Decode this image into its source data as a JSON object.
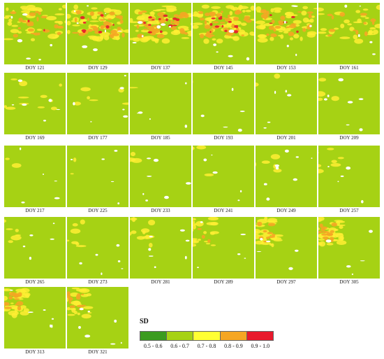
{
  "panels": [
    {
      "label": "DOY 121",
      "level": 0.55
    },
    {
      "label": "DOY 129",
      "level": 0.7
    },
    {
      "label": "DOY 137",
      "level": 0.82
    },
    {
      "label": "DOY 145",
      "level": 0.8
    },
    {
      "label": "DOY 153",
      "level": 0.62
    },
    {
      "label": "DOY 161",
      "level": 0.42
    },
    {
      "label": "DOY 169",
      "level": 0.15
    },
    {
      "label": "DOY 177",
      "level": 0.08
    },
    {
      "label": "DOY 185",
      "level": 0.02
    },
    {
      "label": "DOY 193",
      "level": 0.02
    },
    {
      "label": "DOY 201",
      "level": 0.03
    },
    {
      "label": "DOY 209",
      "level": 0.05
    },
    {
      "label": "DOY 217",
      "level": 0.03
    },
    {
      "label": "DOY 225",
      "level": 0.03
    },
    {
      "label": "DOY 233",
      "level": 0.04
    },
    {
      "label": "DOY 241",
      "level": 0.05
    },
    {
      "label": "DOY 249",
      "level": 0.07
    },
    {
      "label": "DOY 257",
      "level": 0.1
    },
    {
      "label": "DOY 265",
      "level": 0.1
    },
    {
      "label": "DOY 273",
      "level": 0.12
    },
    {
      "label": "DOY 281",
      "level": 0.18
    },
    {
      "label": "DOY 289",
      "level": 0.3
    },
    {
      "label": "DOY 297",
      "level": 0.38
    },
    {
      "label": "DOY 305",
      "level": 0.45
    },
    {
      "label": "DOY 313",
      "level": 0.45
    },
    {
      "label": "DOY 321",
      "level": 0.42
    }
  ],
  "legend": {
    "title": "SD",
    "classes": [
      {
        "label": "0.5 - 0.6",
        "color": "#3b9b1f"
      },
      {
        "label": "0.6 - 0.7",
        "color": "#a6d214"
      },
      {
        "label": "0.7 - 0.8",
        "color": "#ffff33"
      },
      {
        "label": "0.8 - 0.9",
        "color": "#f5a623"
      },
      {
        "label": "0.9 - 1.0",
        "color": "#e8192c"
      }
    ]
  },
  "colors": {
    "base": "#a6d214",
    "yellow": "#ffee33",
    "orange": "#f5a623",
    "red": "#e8192c",
    "nodata": "#ffffff"
  }
}
